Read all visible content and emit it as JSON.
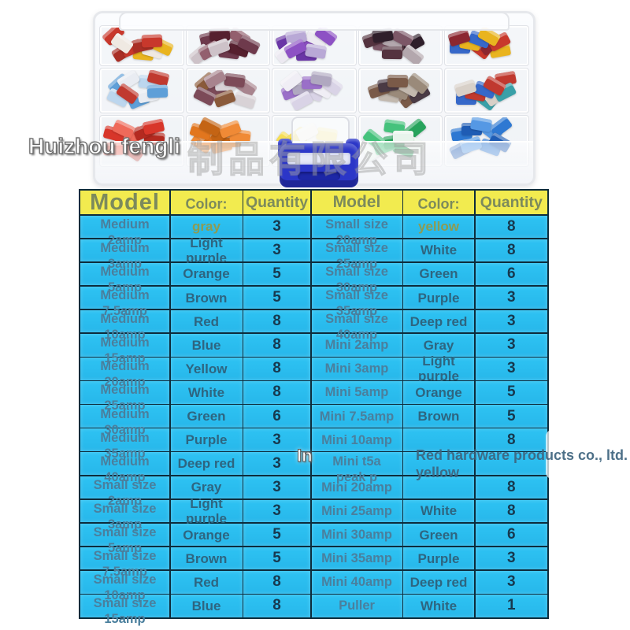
{
  "watermarks": {
    "brand": "Huizhou fengli",
    "chinese": "制品有限公司",
    "in_label": "In",
    "company_line1": "Red hardware products co., ltd.",
    "company_line2": "yellow"
  },
  "table": {
    "headers": [
      "Model",
      "Color:",
      "Quantity",
      "Model",
      "Color:",
      "Quantity"
    ],
    "left_rows": [
      {
        "model": [
          "Medium",
          "2amp"
        ],
        "color": "gray",
        "qty": "3",
        "olive": true
      },
      {
        "model": [
          "Medium",
          "3amp"
        ],
        "color": "Light purple",
        "qty": "3"
      },
      {
        "model": [
          "Medium",
          "5amp"
        ],
        "color": "Orange",
        "qty": "5"
      },
      {
        "model": [
          "Medium",
          "7.5amp"
        ],
        "color": "Brown",
        "qty": "5"
      },
      {
        "model": [
          "Medium",
          "10amp"
        ],
        "color": "Red",
        "qty": "8"
      },
      {
        "model": [
          "Medium",
          "15amp"
        ],
        "color": "Blue",
        "qty": "8"
      },
      {
        "model": [
          "Medium",
          "20amp"
        ],
        "color": "Yellow",
        "qty": "8"
      },
      {
        "model": [
          "Medium",
          "25amp"
        ],
        "color": "White",
        "qty": "8"
      },
      {
        "model": [
          "Medium",
          "30amp"
        ],
        "color": "Green",
        "qty": "6"
      },
      {
        "model": [
          "Medium",
          "35amp"
        ],
        "color": "Purple",
        "qty": "3"
      },
      {
        "model": [
          "Medium",
          "40amp"
        ],
        "color": "Deep red",
        "qty": "3"
      },
      {
        "model": [
          "Small size",
          "2amp"
        ],
        "color": "Gray",
        "qty": "3"
      },
      {
        "model": [
          "Small size",
          "3amp"
        ],
        "color": "Light purple",
        "qty": "3"
      },
      {
        "model": [
          "Small size",
          "5amp"
        ],
        "color": "Orange",
        "qty": "5"
      },
      {
        "model": [
          "Small size",
          "7.5amp"
        ],
        "color": "Brown",
        "qty": "5"
      },
      {
        "model": [
          "Small size",
          "10amp"
        ],
        "color": "Red",
        "qty": "8"
      },
      {
        "model": [
          "Small size",
          "15amp"
        ],
        "color": "Blue",
        "qty": "8"
      }
    ],
    "right_rows": [
      {
        "model": [
          "Small size",
          "20amp"
        ],
        "color": "yellow",
        "qty": "8",
        "olive": true
      },
      {
        "model": [
          "Small size",
          "25amp"
        ],
        "color": "White",
        "qty": "8"
      },
      {
        "model": [
          "Small size",
          "30amp"
        ],
        "color": "Green",
        "qty": "6"
      },
      {
        "model": [
          "Small size",
          "35amp"
        ],
        "color": "Purple",
        "qty": "3"
      },
      {
        "model": [
          "Small size",
          "40amp"
        ],
        "color": "Deep red",
        "qty": "3"
      },
      {
        "model": [
          "Mini 2amp"
        ],
        "color": "Gray",
        "qty": "3"
      },
      {
        "model": [
          "Mini 3amp"
        ],
        "color": "Light purple",
        "qty": "3"
      },
      {
        "model": [
          "Mini 5amp"
        ],
        "color": "Orange",
        "qty": "5"
      },
      {
        "model": [
          "Mini 7.5amp"
        ],
        "color": "Brown",
        "qty": "5"
      },
      {
        "model": [
          "Mini 10amp"
        ],
        "color": "",
        "qty": "8"
      },
      {
        "model": [
          "Mini t5a",
          "peak p"
        ],
        "color": "",
        "qty": ""
      },
      {
        "model": [
          "Mini 20amp"
        ],
        "color": "",
        "qty": "8"
      },
      {
        "model": [
          "Mini 25amp"
        ],
        "color": "White",
        "qty": "8"
      },
      {
        "model": [
          "Mini 30amp"
        ],
        "color": "Green",
        "qty": "6"
      },
      {
        "model": [
          "Mini 35amp"
        ],
        "color": "Purple",
        "qty": "3"
      },
      {
        "model": [
          "Mini 40amp"
        ],
        "color": "Deep red",
        "qty": "3"
      },
      {
        "model": [
          "Puller"
        ],
        "color": "White",
        "qty": "1"
      }
    ]
  },
  "colors": {
    "cell_cyan": "#29bdf0",
    "header_yellow": "#f2eb4f",
    "table_border": "#0d2c3c",
    "model_text": "#4a7f9d",
    "color_text": "#2e6580",
    "olive_text": "#8d9b53",
    "qty_text": "#17394f",
    "header_text": "#7c8a5c",
    "watermark_text": "#3e647e",
    "puller_blue": "#2b36c8"
  },
  "photo": {
    "rows": [
      [
        [
          "#c8382c",
          "#e9b41f",
          "#a92f26",
          "#efe9e2"
        ],
        [
          "#6e3a4c",
          "#93606e",
          "#56202e",
          "#cdc2c8"
        ],
        [
          "#8d51c4",
          "#6a36a6",
          "#ece9f1",
          "#b9a9d6"
        ],
        [
          "#54333f",
          "#7c5767",
          "#2f1f2b",
          "#b3a7ad"
        ],
        [
          "#e9b41f",
          "#c8382c",
          "#3668c9",
          "#8c2730"
        ]
      ],
      [
        [
          "#5e9fd8",
          "#bcd6ee",
          "#e9ecf2",
          "#c0392f"
        ],
        [
          "#7c4a58",
          "#a8848e",
          "#d8d2d6",
          "#8a5a3a"
        ],
        [
          "#d9d3e6",
          "#9a6fc8",
          "#f0eef5",
          "#b0a8c0"
        ],
        [
          "#7a5a48",
          "#c2b8ae",
          "#4a3a44",
          "#9a8a7a"
        ],
        [
          "#c0392f",
          "#3aa0a8",
          "#3668c9",
          "#d8d0c8"
        ]
      ],
      [
        [
          "#d8362a",
          "#b42a20",
          "#ef6a5a"
        ],
        [
          "#e2761e",
          "#f08a36",
          "#c46414"
        ],
        [
          "#eccb17",
          "#f6de55",
          "#f4f0e0"
        ],
        [
          "#27a35c",
          "#45c27c",
          "#e8f4ec"
        ],
        [
          "#2e78d2",
          "#5598e4",
          "#1f5cb4"
        ]
      ]
    ]
  }
}
